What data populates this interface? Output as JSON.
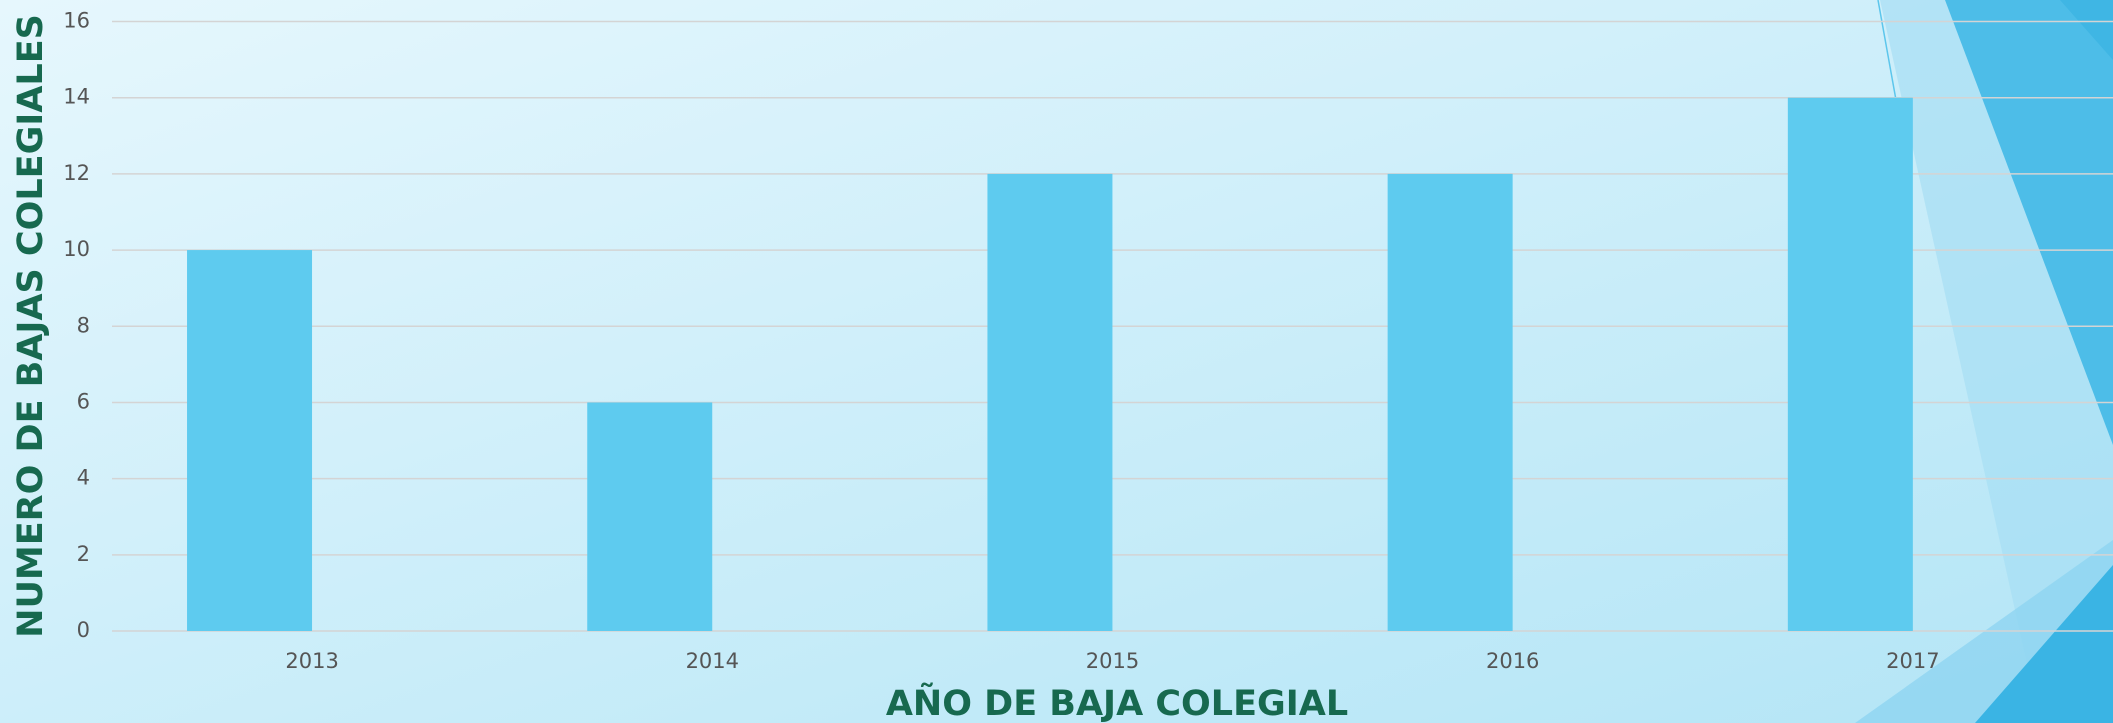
{
  "chart_data": {
    "type": "bar",
    "x_label": "AÑO DE BAJA COLEGIAL",
    "y_label": "NUMERO DE BAJAS COLEGIALES",
    "categories": [
      "2013",
      "2014",
      "2015",
      "2016",
      "2017"
    ],
    "values": [
      10,
      6,
      12,
      12,
      14
    ],
    "color": "#5ecbef",
    "ylim": [
      0,
      16
    ],
    "yticks": [
      0,
      2,
      4,
      6,
      8,
      10,
      12,
      14,
      16
    ],
    "grid": true
  }
}
